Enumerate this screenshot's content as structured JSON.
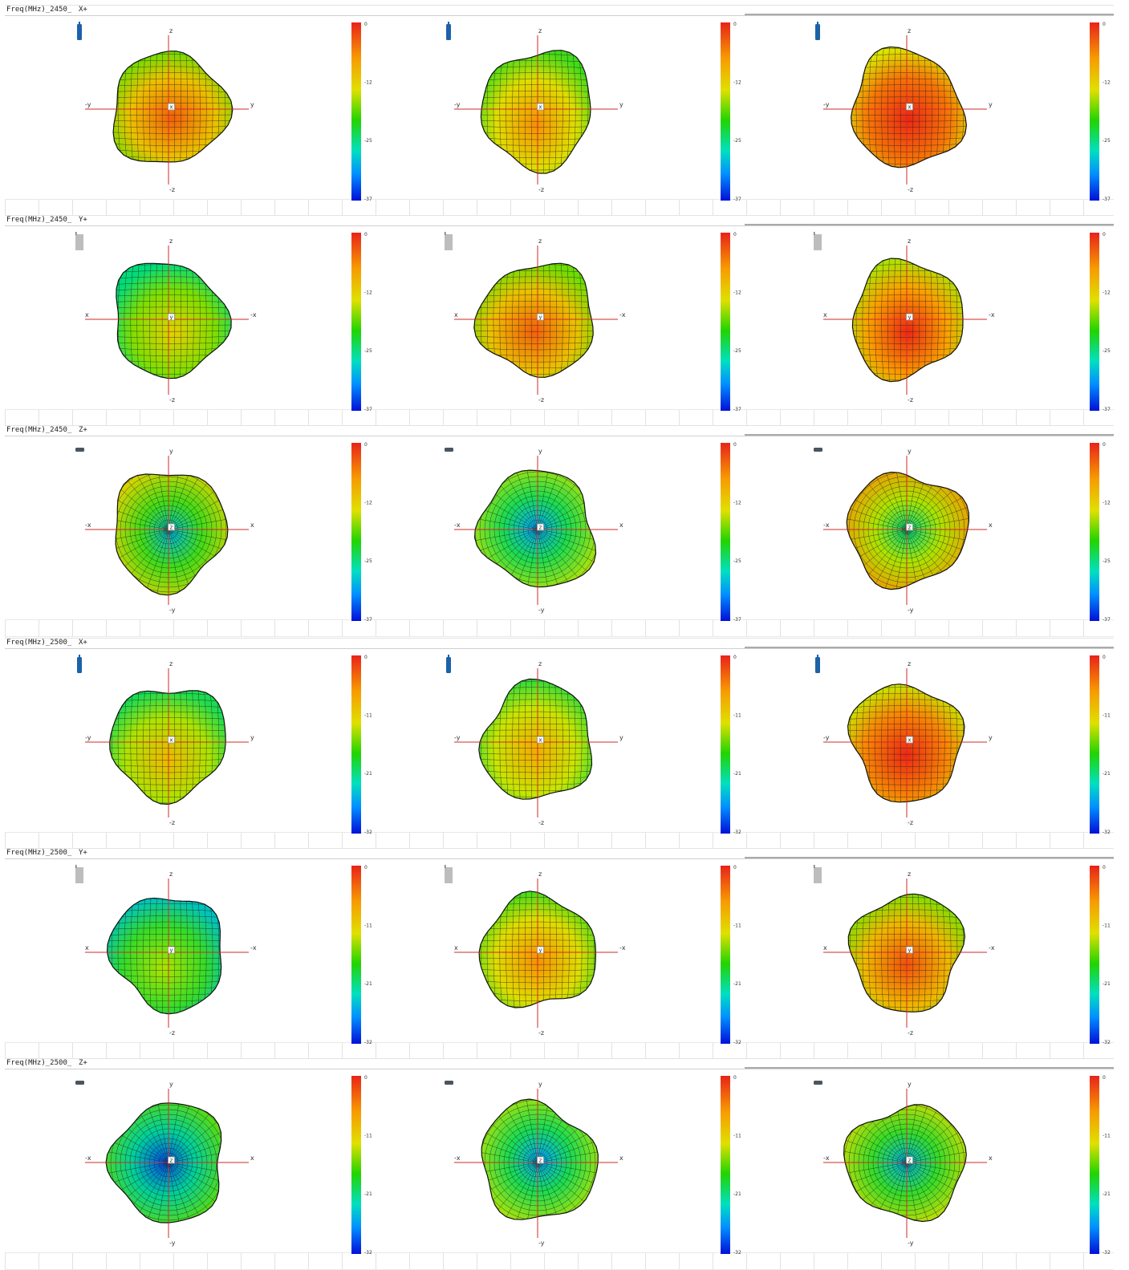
{
  "sections": [
    {
      "freq_label": "Freq(MHz)_2450_",
      "direction": "X+",
      "axes": {
        "up": "z",
        "down": "-z",
        "left": "-y",
        "right": "y",
        "center": "x"
      },
      "device": "vertical-phone-icon",
      "cbar": [
        "0",
        "-12",
        "-25",
        "-37"
      ]
    },
    {
      "freq_label": "Freq(MHz)_2450_",
      "direction": "Y+",
      "axes": {
        "up": "z",
        "down": "-z",
        "left": "x",
        "right": "-x",
        "center": "y"
      },
      "device": "side-phone-icon",
      "cbar": [
        "0",
        "-12",
        "-25",
        "-37"
      ]
    },
    {
      "freq_label": "Freq(MHz)_2450_",
      "direction": "Z+",
      "axes": {
        "up": "y",
        "down": "-y",
        "left": "-x",
        "right": "x",
        "center": "z"
      },
      "device": "flat-phone-icon",
      "cbar": [
        "0",
        "-12",
        "-25",
        "-37"
      ]
    },
    {
      "freq_label": "Freq(MHz)_2500_",
      "direction": "X+",
      "axes": {
        "up": "z",
        "down": "-z",
        "left": "-y",
        "right": "y",
        "center": "x"
      },
      "device": "vertical-phone-icon",
      "cbar": [
        "0",
        "-11",
        "-21",
        "-32"
      ]
    },
    {
      "freq_label": "Freq(MHz)_2500_",
      "direction": "Y+",
      "axes": {
        "up": "z",
        "down": "-z",
        "left": "x",
        "right": "-x",
        "center": "y"
      },
      "device": "side-phone-icon",
      "cbar": [
        "0",
        "-11",
        "-21",
        "-32"
      ]
    },
    {
      "freq_label": "Freq(MHz)_2500_",
      "direction": "Z+",
      "axes": {
        "up": "y",
        "down": "-y",
        "left": "-x",
        "right": "x",
        "center": "z"
      },
      "device": "flat-phone-icon",
      "cbar": [
        "0",
        "-11",
        "-21",
        "-32"
      ]
    }
  ],
  "panel_fill_levels": [
    [
      0.78,
      0.72,
      0.9
    ],
    [
      0.6,
      0.78,
      0.85
    ],
    [
      0.62,
      0.55,
      0.75
    ],
    [
      0.65,
      0.68,
      0.88
    ],
    [
      0.5,
      0.72,
      0.8
    ],
    [
      0.45,
      0.55,
      0.6
    ]
  ],
  "colors": {
    "axis_line": "#cc2b2b",
    "grid_line": "#1a1a1a",
    "phone_blue": "#1d62a8",
    "phone_gray": "#bdbdbd",
    "phone_dark": "#4a5560"
  }
}
